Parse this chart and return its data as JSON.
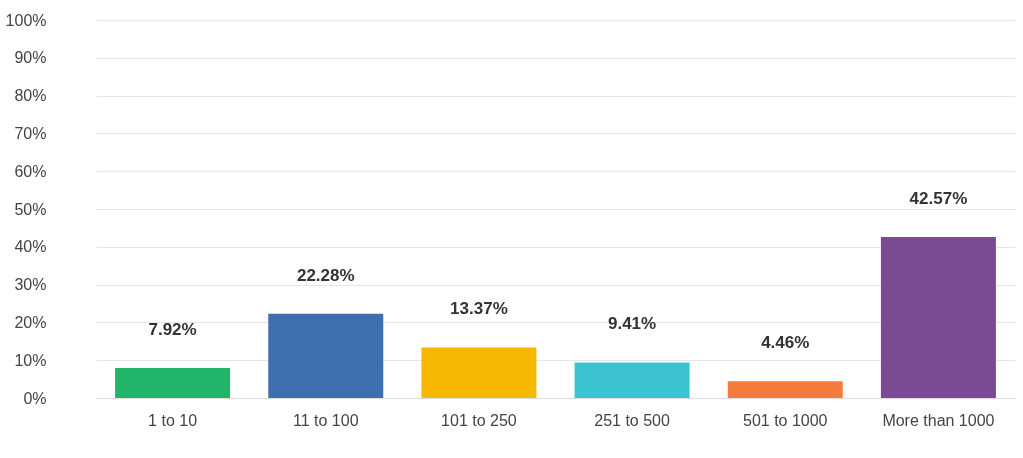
{
  "chart_data": {
    "type": "bar",
    "categories": [
      "1 to 10",
      "11 to 100",
      "101 to 250",
      "251 to 500",
      "501 to 1000",
      "More than 1000"
    ],
    "values": [
      7.92,
      22.28,
      13.37,
      9.41,
      4.46,
      42.57
    ],
    "colors": [
      "#21b56b",
      "#3c6eb0",
      "#f6b800",
      "#3cc3d0",
      "#f47b3c",
      "#7a4a93"
    ],
    "value_labels": [
      "7.92%",
      "22.28%",
      "13.37%",
      "9.41%",
      "4.46%",
      "42.57%"
    ],
    "ylim": [
      0,
      100
    ],
    "yticks": [
      {
        "value": 0,
        "label": "0%"
      },
      {
        "value": 10,
        "label": "10%"
      },
      {
        "value": 20,
        "label": "20%"
      },
      {
        "value": 30,
        "label": "30%"
      },
      {
        "value": 40,
        "label": "40%"
      },
      {
        "value": 50,
        "label": "50%"
      },
      {
        "value": 60,
        "label": "60%"
      },
      {
        "value": 70,
        "label": "70%"
      },
      {
        "value": 80,
        "label": "80%"
      },
      {
        "value": 90,
        "label": "90%"
      },
      {
        "value": 100,
        "label": "100%"
      }
    ],
    "grid": "y",
    "legend": false
  }
}
